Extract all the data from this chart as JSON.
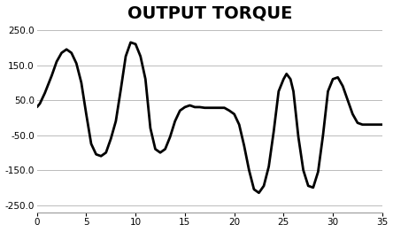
{
  "title": "OUTPUT TORQUE",
  "title_fontsize": 14,
  "title_fontweight": "bold",
  "xlim": [
    0,
    35
  ],
  "ylim": [
    -270,
    270
  ],
  "xticks": [
    0,
    5,
    10,
    15,
    20,
    25,
    30,
    35
  ],
  "yticks": [
    -250.0,
    -150.0,
    -50.0,
    50.0,
    150.0,
    250.0
  ],
  "line_color": "#000000",
  "line_width": 2.0,
  "background_color": "#ffffff",
  "grid_color": "#bbbbbb",
  "x": [
    0,
    0.3,
    0.8,
    1.5,
    2.0,
    2.5,
    3.0,
    3.5,
    4.0,
    4.5,
    5.0,
    5.5,
    6.0,
    6.5,
    7.0,
    7.5,
    8.0,
    8.5,
    9.0,
    9.5,
    10.0,
    10.5,
    11.0,
    11.5,
    12.0,
    12.5,
    13.0,
    13.5,
    14.0,
    14.5,
    15.0,
    15.5,
    16.0,
    16.5,
    17.0,
    17.5,
    18.0,
    18.5,
    19.0,
    19.5,
    20.0,
    20.5,
    21.0,
    21.5,
    22.0,
    22.5,
    23.0,
    23.5,
    24.0,
    24.5,
    25.0,
    25.3,
    25.7,
    26.0,
    26.5,
    27.0,
    27.5,
    28.0,
    28.5,
    29.0,
    29.5,
    30.0,
    30.5,
    31.0,
    31.5,
    32.0,
    32.5,
    33.0,
    33.5,
    34.0,
    34.5,
    35.0
  ],
  "y": [
    30,
    40,
    70,
    120,
    160,
    185,
    195,
    185,
    155,
    100,
    10,
    -75,
    -105,
    -110,
    -100,
    -60,
    -10,
    80,
    175,
    215,
    210,
    175,
    110,
    -30,
    -90,
    -100,
    -90,
    -55,
    -10,
    20,
    30,
    35,
    30,
    30,
    28,
    28,
    28,
    28,
    28,
    20,
    10,
    -20,
    -80,
    -150,
    -205,
    -215,
    -195,
    -140,
    -40,
    75,
    110,
    125,
    110,
    75,
    -55,
    -150,
    -195,
    -200,
    -155,
    -50,
    75,
    110,
    115,
    90,
    50,
    10,
    -15,
    -20,
    -20,
    -20,
    -20,
    -20
  ]
}
